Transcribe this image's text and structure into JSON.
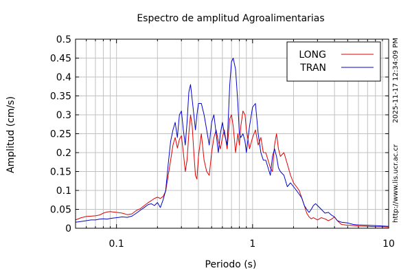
{
  "chart_data": {
    "type": "line",
    "title": "Espectro de amplitud Agroalimentarias",
    "xlabel": "Periodo (s)",
    "ylabel": "Amplitud (cm/s)",
    "x_scale": "log",
    "xlim": [
      0.05,
      10
    ],
    "ylim": [
      0,
      0.5
    ],
    "x_ticks": [
      0.1,
      1,
      10
    ],
    "x_tick_labels": [
      "0.1",
      "1",
      "10"
    ],
    "y_ticks": [
      0,
      0.05,
      0.1,
      0.15,
      0.2,
      0.25,
      0.3,
      0.35,
      0.4,
      0.45,
      0.5
    ],
    "y_tick_labels": [
      "0",
      "0.05",
      "0.1",
      "0.15",
      "0.2",
      "0.25",
      "0.3",
      "0.35",
      "0.4",
      "0.45",
      "0.5"
    ],
    "grid": true,
    "legend_position": "top-right",
    "side_labels": {
      "timestamp": "2025-11-17 12:34:09 PM",
      "url": "http://www.lis.ucr.ac.cr"
    },
    "series": [
      {
        "name": "LONG",
        "color": "#dd0000",
        "points": [
          [
            0.05,
            0.022
          ],
          [
            0.055,
            0.028
          ],
          [
            0.06,
            0.031
          ],
          [
            0.065,
            0.032
          ],
          [
            0.07,
            0.033
          ],
          [
            0.075,
            0.035
          ],
          [
            0.08,
            0.04
          ],
          [
            0.085,
            0.043
          ],
          [
            0.09,
            0.044
          ],
          [
            0.095,
            0.043
          ],
          [
            0.1,
            0.042
          ],
          [
            0.11,
            0.04
          ],
          [
            0.12,
            0.036
          ],
          [
            0.13,
            0.038
          ],
          [
            0.14,
            0.047
          ],
          [
            0.15,
            0.052
          ],
          [
            0.16,
            0.06
          ],
          [
            0.17,
            0.067
          ],
          [
            0.18,
            0.073
          ],
          [
            0.19,
            0.079
          ],
          [
            0.2,
            0.082
          ],
          [
            0.21,
            0.079
          ],
          [
            0.22,
            0.084
          ],
          [
            0.23,
            0.098
          ],
          [
            0.24,
            0.14
          ],
          [
            0.25,
            0.18
          ],
          [
            0.26,
            0.22
          ],
          [
            0.27,
            0.24
          ],
          [
            0.28,
            0.212
          ],
          [
            0.29,
            0.235
          ],
          [
            0.3,
            0.245
          ],
          [
            0.31,
            0.2
          ],
          [
            0.32,
            0.15
          ],
          [
            0.33,
            0.18
          ],
          [
            0.34,
            0.25
          ],
          [
            0.35,
            0.3
          ],
          [
            0.36,
            0.27
          ],
          [
            0.37,
            0.2
          ],
          [
            0.38,
            0.14
          ],
          [
            0.39,
            0.13
          ],
          [
            0.4,
            0.19
          ],
          [
            0.42,
            0.25
          ],
          [
            0.44,
            0.18
          ],
          [
            0.46,
            0.15
          ],
          [
            0.48,
            0.14
          ],
          [
            0.5,
            0.2
          ],
          [
            0.52,
            0.24
          ],
          [
            0.54,
            0.26
          ],
          [
            0.56,
            0.23
          ],
          [
            0.58,
            0.21
          ],
          [
            0.6,
            0.24
          ],
          [
            0.62,
            0.26
          ],
          [
            0.65,
            0.21
          ],
          [
            0.68,
            0.29
          ],
          [
            0.7,
            0.3
          ],
          [
            0.72,
            0.27
          ],
          [
            0.75,
            0.2
          ],
          [
            0.78,
            0.25
          ],
          [
            0.8,
            0.22
          ],
          [
            0.82,
            0.27
          ],
          [
            0.85,
            0.31
          ],
          [
            0.88,
            0.3
          ],
          [
            0.9,
            0.26
          ],
          [
            0.95,
            0.21
          ],
          [
            1.0,
            0.24
          ],
          [
            1.05,
            0.26
          ],
          [
            1.1,
            0.22
          ],
          [
            1.15,
            0.24
          ],
          [
            1.2,
            0.2
          ],
          [
            1.25,
            0.2
          ],
          [
            1.3,
            0.18
          ],
          [
            1.35,
            0.16
          ],
          [
            1.4,
            0.15
          ],
          [
            1.45,
            0.22
          ],
          [
            1.5,
            0.25
          ],
          [
            1.55,
            0.21
          ],
          [
            1.6,
            0.19
          ],
          [
            1.7,
            0.2
          ],
          [
            1.8,
            0.17
          ],
          [
            1.9,
            0.14
          ],
          [
            2.0,
            0.12
          ],
          [
            2.1,
            0.11
          ],
          [
            2.2,
            0.1
          ],
          [
            2.3,
            0.08
          ],
          [
            2.4,
            0.06
          ],
          [
            2.5,
            0.04
          ],
          [
            2.6,
            0.03
          ],
          [
            2.7,
            0.025
          ],
          [
            2.8,
            0.028
          ],
          [
            2.9,
            0.025
          ],
          [
            3.0,
            0.022
          ],
          [
            3.2,
            0.028
          ],
          [
            3.4,
            0.025
          ],
          [
            3.6,
            0.02
          ],
          [
            3.8,
            0.024
          ],
          [
            4.0,
            0.03
          ],
          [
            4.2,
            0.02
          ],
          [
            4.5,
            0.01
          ],
          [
            5.0,
            0.008
          ],
          [
            5.5,
            0.007
          ],
          [
            6.0,
            0.006
          ],
          [
            7.0,
            0.005
          ],
          [
            8.0,
            0.004
          ],
          [
            9.0,
            0.004
          ],
          [
            10.0,
            0.003
          ]
        ]
      },
      {
        "name": "TRAN",
        "color": "#0000cc",
        "points": [
          [
            0.05,
            0.016
          ],
          [
            0.055,
            0.018
          ],
          [
            0.06,
            0.02
          ],
          [
            0.065,
            0.022
          ],
          [
            0.07,
            0.022
          ],
          [
            0.075,
            0.024
          ],
          [
            0.08,
            0.025
          ],
          [
            0.085,
            0.024
          ],
          [
            0.09,
            0.026
          ],
          [
            0.095,
            0.027
          ],
          [
            0.1,
            0.028
          ],
          [
            0.11,
            0.03
          ],
          [
            0.12,
            0.029
          ],
          [
            0.13,
            0.032
          ],
          [
            0.14,
            0.04
          ],
          [
            0.15,
            0.048
          ],
          [
            0.16,
            0.055
          ],
          [
            0.17,
            0.062
          ],
          [
            0.18,
            0.065
          ],
          [
            0.19,
            0.06
          ],
          [
            0.2,
            0.068
          ],
          [
            0.21,
            0.055
          ],
          [
            0.22,
            0.075
          ],
          [
            0.23,
            0.1
          ],
          [
            0.24,
            0.17
          ],
          [
            0.25,
            0.23
          ],
          [
            0.26,
            0.26
          ],
          [
            0.27,
            0.28
          ],
          [
            0.28,
            0.24
          ],
          [
            0.29,
            0.3
          ],
          [
            0.3,
            0.31
          ],
          [
            0.31,
            0.26
          ],
          [
            0.32,
            0.22
          ],
          [
            0.33,
            0.28
          ],
          [
            0.34,
            0.36
          ],
          [
            0.35,
            0.38
          ],
          [
            0.36,
            0.34
          ],
          [
            0.37,
            0.3
          ],
          [
            0.38,
            0.26
          ],
          [
            0.39,
            0.3
          ],
          [
            0.4,
            0.33
          ],
          [
            0.42,
            0.33
          ],
          [
            0.44,
            0.3
          ],
          [
            0.46,
            0.26
          ],
          [
            0.48,
            0.22
          ],
          [
            0.5,
            0.28
          ],
          [
            0.52,
            0.3
          ],
          [
            0.54,
            0.25
          ],
          [
            0.56,
            0.2
          ],
          [
            0.58,
            0.25
          ],
          [
            0.6,
            0.28
          ],
          [
            0.62,
            0.25
          ],
          [
            0.65,
            0.22
          ],
          [
            0.68,
            0.38
          ],
          [
            0.7,
            0.44
          ],
          [
            0.72,
            0.45
          ],
          [
            0.75,
            0.42
          ],
          [
            0.78,
            0.33
          ],
          [
            0.8,
            0.25
          ],
          [
            0.82,
            0.24
          ],
          [
            0.85,
            0.25
          ],
          [
            0.88,
            0.23
          ],
          [
            0.9,
            0.2
          ],
          [
            0.95,
            0.27
          ],
          [
            1.0,
            0.32
          ],
          [
            1.05,
            0.33
          ],
          [
            1.1,
            0.25
          ],
          [
            1.15,
            0.2
          ],
          [
            1.2,
            0.18
          ],
          [
            1.25,
            0.18
          ],
          [
            1.3,
            0.16
          ],
          [
            1.35,
            0.14
          ],
          [
            1.4,
            0.19
          ],
          [
            1.45,
            0.21
          ],
          [
            1.5,
            0.19
          ],
          [
            1.55,
            0.16
          ],
          [
            1.6,
            0.15
          ],
          [
            1.7,
            0.14
          ],
          [
            1.8,
            0.11
          ],
          [
            1.9,
            0.12
          ],
          [
            2.0,
            0.11
          ],
          [
            2.1,
            0.1
          ],
          [
            2.2,
            0.09
          ],
          [
            2.3,
            0.08
          ],
          [
            2.4,
            0.06
          ],
          [
            2.5,
            0.05
          ],
          [
            2.6,
            0.042
          ],
          [
            2.7,
            0.05
          ],
          [
            2.8,
            0.06
          ],
          [
            2.9,
            0.065
          ],
          [
            3.0,
            0.06
          ],
          [
            3.2,
            0.05
          ],
          [
            3.4,
            0.04
          ],
          [
            3.6,
            0.042
          ],
          [
            3.8,
            0.035
          ],
          [
            4.0,
            0.03
          ],
          [
            4.2,
            0.02
          ],
          [
            4.5,
            0.016
          ],
          [
            5.0,
            0.014
          ],
          [
            5.5,
            0.01
          ],
          [
            6.0,
            0.009
          ],
          [
            7.0,
            0.008
          ],
          [
            8.0,
            0.007
          ],
          [
            9.0,
            0.006
          ],
          [
            10.0,
            0.005
          ]
        ]
      }
    ]
  }
}
